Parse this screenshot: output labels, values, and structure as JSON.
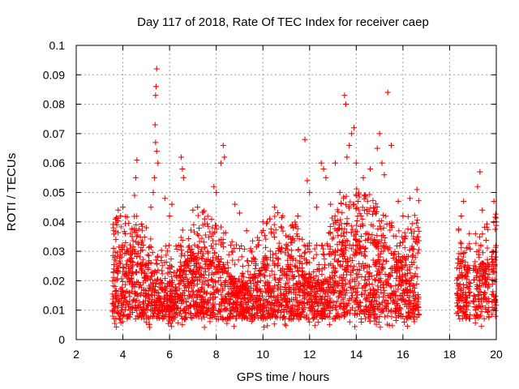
{
  "chart_data": {
    "type": "scatter",
    "title": "Day 117 of 2018, Rate Of TEC Index for receiver caep",
    "xlabel": "GPS time / hours",
    "ylabel": "ROTI / TECUs",
    "xlim": [
      2,
      20
    ],
    "ylim": [
      0,
      0.1
    ],
    "xticks": [
      2,
      4,
      6,
      8,
      10,
      12,
      14,
      16,
      18,
      20
    ],
    "xtick_labels": [
      "2",
      "4",
      "6",
      "8",
      "10",
      "12",
      "14",
      "16",
      "18",
      "20"
    ],
    "yticks": [
      0,
      0.01,
      0.02,
      0.03,
      0.04,
      0.05,
      0.06,
      0.07,
      0.08,
      0.09,
      0.1
    ],
    "ytick_labels": [
      "0",
      "0.01",
      "0.02",
      "0.03",
      "0.04",
      "0.05",
      "0.06",
      "0.07",
      "0.08",
      "0.09",
      "0.1"
    ],
    "grid": true,
    "marker": "+",
    "color": "#ff0000",
    "data_gaps": [
      [
        16.7,
        18.3
      ],
      [
        18.9,
        19.0
      ],
      [
        19.7,
        19.8
      ]
    ],
    "series": [
      {
        "name": "ROTI",
        "points": [
          [
            3.6,
            0.031
          ],
          [
            3.7,
            0.034
          ],
          [
            3.8,
            0.044
          ],
          [
            3.9,
            0.042
          ],
          [
            4.0,
            0.045
          ],
          [
            4.1,
            0.036
          ],
          [
            4.2,
            0.03
          ],
          [
            4.4,
            0.035
          ],
          [
            4.5,
            0.049
          ],
          [
            4.55,
            0.055
          ],
          [
            4.6,
            0.061
          ],
          [
            4.8,
            0.033
          ],
          [
            5.0,
            0.038
          ],
          [
            5.2,
            0.045
          ],
          [
            5.3,
            0.05
          ],
          [
            5.35,
            0.055
          ],
          [
            5.4,
            0.083
          ],
          [
            5.42,
            0.086
          ],
          [
            5.45,
            0.092
          ],
          [
            5.38,
            0.073
          ],
          [
            5.4,
            0.067
          ],
          [
            5.45,
            0.064
          ],
          [
            5.5,
            0.06
          ],
          [
            5.8,
            0.048
          ],
          [
            6.0,
            0.042
          ],
          [
            6.1,
            0.046
          ],
          [
            6.5,
            0.062
          ],
          [
            6.55,
            0.058
          ],
          [
            6.6,
            0.055
          ],
          [
            7.0,
            0.044
          ],
          [
            7.2,
            0.045
          ],
          [
            7.5,
            0.041
          ],
          [
            7.9,
            0.052
          ],
          [
            8.0,
            0.05
          ],
          [
            8.2,
            0.06
          ],
          [
            8.3,
            0.066
          ],
          [
            8.35,
            0.062
          ],
          [
            8.8,
            0.046
          ],
          [
            9.0,
            0.043
          ],
          [
            9.3,
            0.037
          ],
          [
            10.0,
            0.04
          ],
          [
            10.3,
            0.041
          ],
          [
            10.5,
            0.045
          ],
          [
            10.8,
            0.038
          ],
          [
            11.2,
            0.033
          ],
          [
            11.5,
            0.042
          ],
          [
            11.8,
            0.068
          ],
          [
            11.9,
            0.054
          ],
          [
            12.0,
            0.05
          ],
          [
            12.3,
            0.045
          ],
          [
            12.5,
            0.06
          ],
          [
            12.6,
            0.058
          ],
          [
            12.7,
            0.055
          ],
          [
            12.9,
            0.046
          ],
          [
            13.1,
            0.06
          ],
          [
            13.3,
            0.05
          ],
          [
            13.5,
            0.083
          ],
          [
            13.55,
            0.08
          ],
          [
            13.6,
            0.062
          ],
          [
            13.7,
            0.066
          ],
          [
            13.8,
            0.07
          ],
          [
            13.9,
            0.072
          ],
          [
            14.0,
            0.06
          ],
          [
            14.3,
            0.055
          ],
          [
            14.6,
            0.058
          ],
          [
            14.9,
            0.065
          ],
          [
            15.0,
            0.07
          ],
          [
            15.1,
            0.06
          ],
          [
            15.2,
            0.056
          ],
          [
            15.35,
            0.084
          ],
          [
            15.5,
            0.066
          ],
          [
            15.8,
            0.047
          ],
          [
            16.0,
            0.042
          ],
          [
            16.3,
            0.048
          ],
          [
            16.6,
            0.051
          ],
          [
            18.5,
            0.042
          ],
          [
            18.6,
            0.047
          ],
          [
            19.2,
            0.052
          ],
          [
            19.3,
            0.057
          ],
          [
            19.4,
            0.044
          ],
          [
            19.9,
            0.047
          ],
          [
            20.0,
            0.04
          ]
        ]
      }
    ]
  }
}
